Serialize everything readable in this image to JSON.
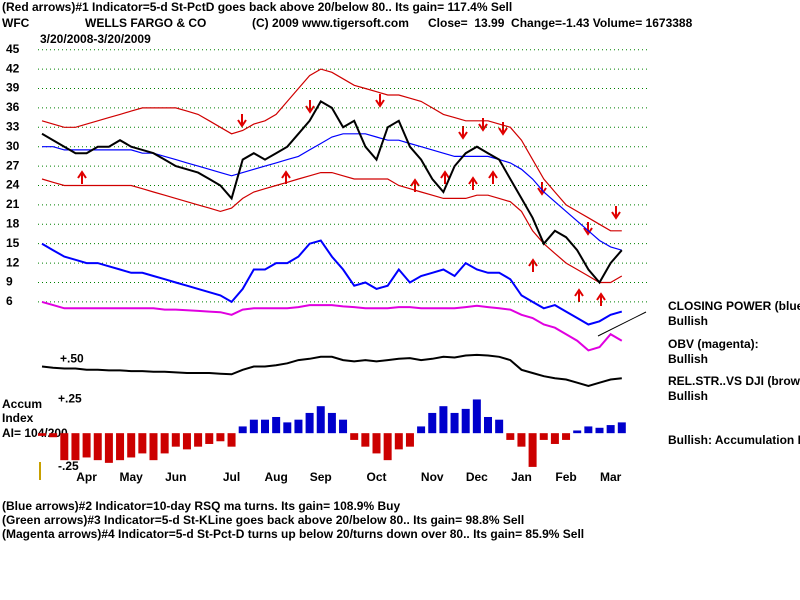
{
  "header": {
    "line1": "(Red arrows)#1 Indicator=5-d St-PctD goes back above 20/below 80.. Its gain= 117.4% Sell",
    "symbol": "WFC",
    "company": "WELLS FARGO & CO",
    "copyright": "(C) 2009 www.tigersoft.com",
    "quote": "Close=  13.99  Change=-1.43 Volume= 1673388",
    "date_range": "3/20/2008-3/20/2009"
  },
  "right_labels": [
    "CLOSING POWER (blue",
    "Bullish",
    "OBV (magenta):",
    "Bullish",
    "REL.STR..VS DJI (brow",
    "Bullish",
    "Bullish: Accumulation R"
  ],
  "accum_labels": [
    "Accum",
    "Index",
    "AI= 104/200"
  ],
  "footer": [
    "(Blue arrows)#2 Indicator=10-day RSQ ma turns. Its gain= 108.9% Buy",
    "(Green arrows)#3 Indicator=5-d St-KLine goes back above 20/below 80.. Its gain= 98.8% Sell",
    "(Magenta arrows)#4 Indicator=5-d St-Pct-D turns up below 20/turns down over 80.. Its gain= 85.9% Sell"
  ],
  "chart_data": [
    {
      "type": "line",
      "categories": [
        null,
        null,
        null,
        null,
        "Apr",
        null,
        null,
        null,
        "May",
        null,
        null,
        null,
        "Jun",
        null,
        null,
        null,
        null,
        "Jul",
        null,
        null,
        null,
        "Aug",
        null,
        null,
        null,
        "Sep",
        null,
        null,
        null,
        null,
        "Oct",
        null,
        null,
        null,
        null,
        "Nov",
        null,
        null,
        null,
        "Dec",
        null,
        null,
        null,
        "Jan",
        null,
        null,
        null,
        "Feb",
        null,
        null,
        null,
        "Mar",
        null
      ],
      "ylim": [
        -20,
        46.5
      ],
      "yticks": [
        6,
        9,
        12,
        15,
        18,
        21,
        24,
        27,
        30,
        33,
        36,
        39,
        42,
        45
      ],
      "grid": true,
      "annotation": "+.50",
      "series": [
        {
          "color": "#d00000",
          "values": [
            34,
            33.5,
            33,
            33,
            33.5,
            34,
            34.5,
            35,
            35.5,
            36,
            36,
            36,
            36,
            35.5,
            35,
            34,
            33,
            32,
            32.5,
            33.5,
            34,
            35,
            37,
            39,
            41,
            42,
            41.5,
            40.5,
            39.5,
            39,
            38.5,
            38,
            38,
            37.5,
            37,
            36,
            35,
            34.5,
            34,
            34,
            34,
            33.5,
            33,
            31,
            28,
            25,
            23,
            21,
            20,
            19,
            18,
            17,
            17
          ]
        },
        {
          "color": "#d00000",
          "values": [
            25,
            24.5,
            24,
            24,
            24,
            24,
            24,
            24,
            24,
            23.5,
            23,
            22.5,
            22,
            21.5,
            21,
            20.5,
            20,
            20.5,
            22,
            23,
            23.5,
            24,
            24.5,
            25,
            25.5,
            26,
            26,
            25.5,
            25,
            25,
            25,
            25,
            24,
            23.5,
            23,
            22.5,
            22,
            22,
            22,
            22.5,
            22.5,
            22,
            21.5,
            20,
            17,
            15,
            13.5,
            12,
            11,
            10,
            9,
            9,
            10
          ]
        },
        {
          "color": "#0000ff",
          "values": [
            30,
            30,
            29.5,
            29.5,
            29.5,
            29.5,
            29.5,
            29.5,
            29.5,
            29,
            29,
            28.5,
            28,
            27.5,
            27,
            26.5,
            26,
            25.5,
            26,
            26.5,
            27,
            27.5,
            28,
            28.5,
            29.5,
            30.5,
            31.5,
            32,
            32,
            32,
            31.5,
            31,
            31,
            30.5,
            30,
            29.5,
            29,
            28.5,
            28.5,
            28.5,
            28.5,
            28,
            27.5,
            26.5,
            25,
            23,
            21.5,
            20,
            18.5,
            17,
            15.5,
            14.5,
            14
          ]
        },
        {
          "color": "#000000",
          "values": [
            32,
            31,
            30,
            29,
            29,
            30,
            30,
            31,
            30,
            29.5,
            29,
            28,
            27,
            26.5,
            26,
            25,
            24,
            22,
            28,
            29,
            28,
            29,
            30,
            32,
            34,
            37,
            36,
            33,
            34,
            30,
            28,
            33,
            34,
            30,
            28,
            25,
            23,
            27,
            29,
            30,
            29,
            28,
            25,
            22,
            19,
            15,
            17,
            16,
            14,
            11,
            9,
            12,
            14
          ]
        },
        {
          "color": "#0000ff",
          "values": [
            15,
            14,
            13,
            12.5,
            12,
            12,
            11.5,
            11,
            10.5,
            10.5,
            10,
            9.5,
            9,
            8.5,
            8,
            7.5,
            7,
            6,
            8,
            11,
            11,
            12,
            12,
            13,
            15,
            15.5,
            13,
            11,
            8.5,
            9,
            8,
            8.5,
            11,
            9,
            10,
            10.5,
            11,
            10,
            12,
            11,
            10.5,
            10.5,
            9.5,
            7,
            6,
            5,
            5.5,
            4.5,
            3.5,
            2.5,
            3,
            4,
            4.5
          ]
        },
        {
          "color": "#e000e0",
          "values": [
            6,
            5.5,
            5,
            5,
            5,
            5,
            5,
            5,
            5,
            5,
            5,
            4.8,
            4.8,
            4.7,
            4.6,
            4.5,
            4.4,
            4,
            4.8,
            5,
            5,
            5,
            5,
            5.2,
            5.5,
            5.5,
            5.5,
            5.3,
            5.2,
            5,
            5,
            5,
            5.2,
            5.2,
            5,
            5,
            5,
            5,
            5.2,
            5.4,
            5.2,
            5,
            4.8,
            4,
            3.5,
            2.5,
            2,
            1,
            0,
            -1.5,
            -1,
            1,
            0
          ]
        },
        {
          "color": "#000000",
          "values": [
            -4,
            -4.2,
            -4.3,
            -4.3,
            -4.5,
            -4.5,
            -4.6,
            -4.6,
            -4.7,
            -4.7,
            -4.8,
            -4.8,
            -4.9,
            -5,
            -5,
            -5,
            -5.1,
            -5.2,
            -4.5,
            -4,
            -4,
            -3.8,
            -3.5,
            -3,
            -2.8,
            -2.5,
            -2.5,
            -3,
            -3.2,
            -3,
            -3.2,
            -3,
            -2.8,
            -2.7,
            -3,
            -2.8,
            -2.5,
            -2.6,
            -2.3,
            -2.2,
            -2.3,
            -2.5,
            -3,
            -4.5,
            -5,
            -5.5,
            -5.8,
            -6,
            -6.5,
            -7,
            -6.5,
            -6,
            -5.8
          ]
        }
      ]
    },
    {
      "type": "bar",
      "ylim": [
        -0.31,
        0.32
      ],
      "yticks": [
        {
          "value": 0.25,
          "label": "+.25"
        },
        {
          "value": -0.25,
          "label": "-.25"
        }
      ],
      "positive_color": "#0000cc",
      "negative_color": "#cc0000",
      "values": [
        -0.02,
        -0.03,
        -0.2,
        -0.2,
        -0.18,
        -0.2,
        -0.22,
        -0.2,
        -0.18,
        -0.15,
        -0.2,
        -0.15,
        -0.1,
        -0.12,
        -0.1,
        -0.08,
        -0.06,
        -0.1,
        0.05,
        0.1,
        0.1,
        0.12,
        0.08,
        0.1,
        0.15,
        0.2,
        0.15,
        0.1,
        -0.05,
        -0.1,
        -0.15,
        -0.2,
        -0.12,
        -0.1,
        0.05,
        0.15,
        0.2,
        0.15,
        0.18,
        0.25,
        0.12,
        0.1,
        -0.05,
        -0.1,
        -0.25,
        -0.05,
        -0.08,
        -0.05,
        0.02,
        0.05,
        0.04,
        0.06,
        0.08
      ]
    }
  ]
}
